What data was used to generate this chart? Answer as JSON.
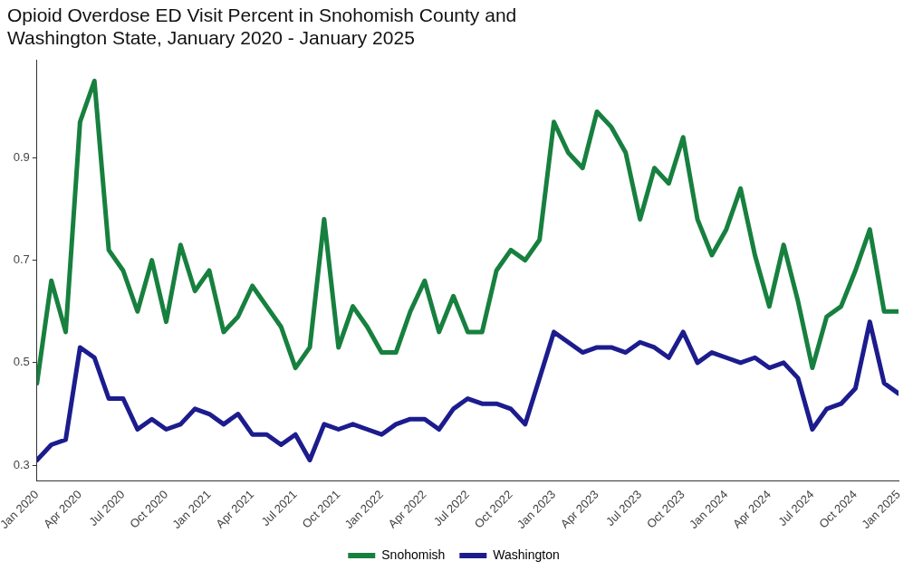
{
  "chart_data": {
    "type": "line",
    "title": "Opioid Overdose ED Visit Percent in Snohomish County and Washington State, January 2020 - January 2025",
    "x": [
      "2020-01",
      "2020-02",
      "2020-03",
      "2020-04",
      "2020-05",
      "2020-06",
      "2020-07",
      "2020-08",
      "2020-09",
      "2020-10",
      "2020-11",
      "2020-12",
      "2021-01",
      "2021-02",
      "2021-03",
      "2021-04",
      "2021-05",
      "2021-06",
      "2021-07",
      "2021-08",
      "2021-09",
      "2021-10",
      "2021-11",
      "2021-12",
      "2022-01",
      "2022-02",
      "2022-03",
      "2022-04",
      "2022-05",
      "2022-06",
      "2022-07",
      "2022-08",
      "2022-09",
      "2022-10",
      "2022-11",
      "2022-12",
      "2023-01",
      "2023-02",
      "2023-03",
      "2023-04",
      "2023-05",
      "2023-06",
      "2023-07",
      "2023-08",
      "2023-09",
      "2023-10",
      "2023-11",
      "2023-12",
      "2024-01",
      "2024-02",
      "2024-03",
      "2024-04",
      "2024-05",
      "2024-06",
      "2024-07",
      "2024-08",
      "2024-09",
      "2024-10",
      "2024-11",
      "2024-12",
      "2025-01"
    ],
    "series": [
      {
        "name": "Snohomish",
        "color": "#17803f",
        "values": [
          0.46,
          0.66,
          0.56,
          0.97,
          1.05,
          0.72,
          0.68,
          0.6,
          0.7,
          0.58,
          0.73,
          0.64,
          0.68,
          0.56,
          0.59,
          0.65,
          0.61,
          0.57,
          0.49,
          0.53,
          0.78,
          0.53,
          0.61,
          0.57,
          0.52,
          0.52,
          0.6,
          0.66,
          0.56,
          0.63,
          0.56,
          0.56,
          0.68,
          0.72,
          0.7,
          0.74,
          0.97,
          0.91,
          0.88,
          0.99,
          0.96,
          0.91,
          0.78,
          0.88,
          0.85,
          0.94,
          0.78,
          0.71,
          0.76,
          0.84,
          0.71,
          0.61,
          0.73,
          0.62,
          0.49,
          0.59,
          0.61,
          0.68,
          0.76,
          0.6,
          0.6
        ]
      },
      {
        "name": "Washington",
        "color": "#1c1c8e",
        "values": [
          0.31,
          0.34,
          0.35,
          0.53,
          0.51,
          0.43,
          0.43,
          0.37,
          0.39,
          0.37,
          0.38,
          0.41,
          0.4,
          0.38,
          0.4,
          0.36,
          0.36,
          0.34,
          0.36,
          0.31,
          0.38,
          0.37,
          0.38,
          0.37,
          0.36,
          0.38,
          0.39,
          0.39,
          0.37,
          0.41,
          0.43,
          0.42,
          0.42,
          0.41,
          0.38,
          0.47,
          0.56,
          0.54,
          0.52,
          0.53,
          0.53,
          0.52,
          0.54,
          0.53,
          0.51,
          0.56,
          0.5,
          0.52,
          0.51,
          0.5,
          0.51,
          0.49,
          0.5,
          0.47,
          0.37,
          0.41,
          0.42,
          0.45,
          0.58,
          0.46,
          0.44
        ]
      }
    ],
    "xlim": [
      "2020-01",
      "2025-01"
    ],
    "xticks": [
      {
        "value": "2020-01",
        "label": "Jan 2020"
      },
      {
        "value": "2020-04",
        "label": "Apr 2020"
      },
      {
        "value": "2020-07",
        "label": "Jul 2020"
      },
      {
        "value": "2020-10",
        "label": "Oct 2020"
      },
      {
        "value": "2021-01",
        "label": "Jan 2021"
      },
      {
        "value": "2021-04",
        "label": "Apr 2021"
      },
      {
        "value": "2021-07",
        "label": "Jul 2021"
      },
      {
        "value": "2021-10",
        "label": "Oct 2021"
      },
      {
        "value": "2022-01",
        "label": "Jan 2022"
      },
      {
        "value": "2022-04",
        "label": "Apr 2022"
      },
      {
        "value": "2022-07",
        "label": "Jul 2022"
      },
      {
        "value": "2022-10",
        "label": "Oct 2022"
      },
      {
        "value": "2023-01",
        "label": "Jan 2023"
      },
      {
        "value": "2023-04",
        "label": "Apr 2023"
      },
      {
        "value": "2023-07",
        "label": "Jul 2023"
      },
      {
        "value": "2023-10",
        "label": "Oct 2023"
      },
      {
        "value": "2024-01",
        "label": "Jan 2024"
      },
      {
        "value": "2024-04",
        "label": "Apr 2024"
      },
      {
        "value": "2024-07",
        "label": "Jul 2024"
      },
      {
        "value": "2024-10",
        "label": "Oct 2024"
      },
      {
        "value": "2025-01",
        "label": "Jan 2025"
      }
    ],
    "ylim": [
      0.27,
      1.09
    ],
    "yticks": [
      0.3,
      0.5,
      0.7,
      0.9
    ],
    "grid": false,
    "legend": "bottom",
    "marker": "none",
    "line_style": "solid"
  }
}
